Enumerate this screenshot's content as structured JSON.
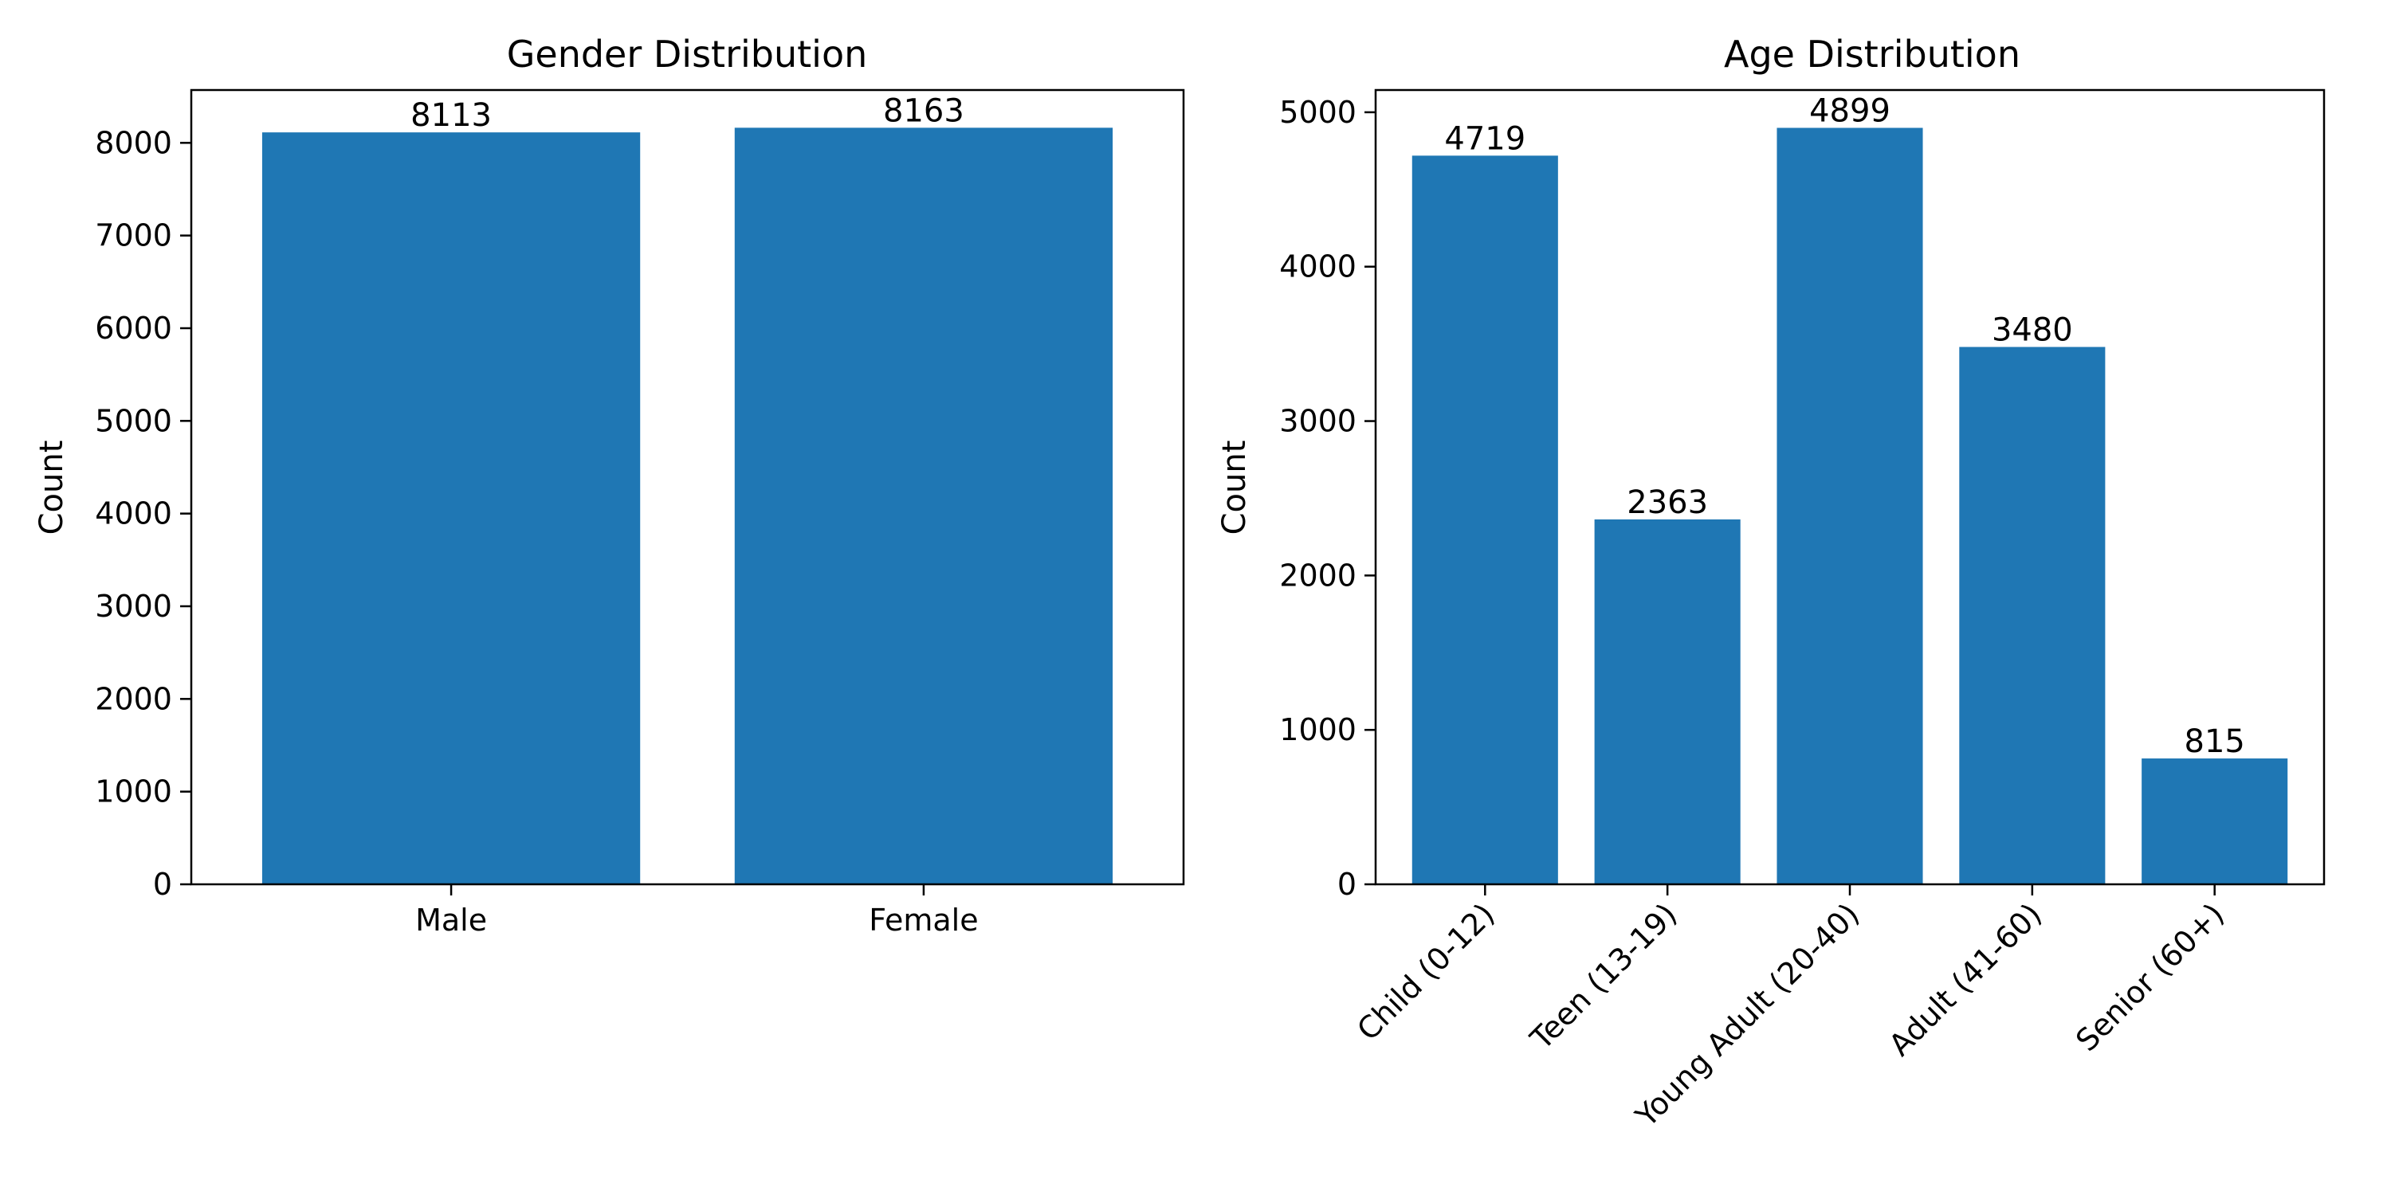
{
  "colors": {
    "bar": "#1f77b4"
  },
  "chart_data": [
    {
      "type": "bar",
      "title": "Gender Distribution",
      "xlabel": "",
      "ylabel": "Count",
      "categories": [
        "Male",
        "Female"
      ],
      "values": [
        8113,
        8163
      ],
      "data_labels": [
        "8113",
        "8163"
      ],
      "ylim": [
        0,
        8570
      ],
      "yticks": [
        0,
        1000,
        2000,
        3000,
        4000,
        5000,
        6000,
        7000,
        8000
      ],
      "ytick_labels": [
        "0",
        "1000",
        "2000",
        "3000",
        "4000",
        "5000",
        "6000",
        "7000",
        "8000"
      ],
      "xtick_rotation": 0,
      "grid": false
    },
    {
      "type": "bar",
      "title": "Age Distribution",
      "xlabel": "",
      "ylabel": "Count",
      "categories": [
        "Child (0-12)",
        "Teen (13-19)",
        "Young Adult (20-40)",
        "Adult (41-60)",
        "Senior (60+)"
      ],
      "values": [
        4719,
        2363,
        4899,
        3480,
        815
      ],
      "data_labels": [
        "4719",
        "2363",
        "4899",
        "3480",
        "815"
      ],
      "ylim": [
        0,
        5144
      ],
      "yticks": [
        0,
        1000,
        2000,
        3000,
        4000,
        5000
      ],
      "ytick_labels": [
        "0",
        "1000",
        "2000",
        "3000",
        "4000",
        "5000"
      ],
      "xtick_rotation": -45,
      "grid": false
    }
  ]
}
